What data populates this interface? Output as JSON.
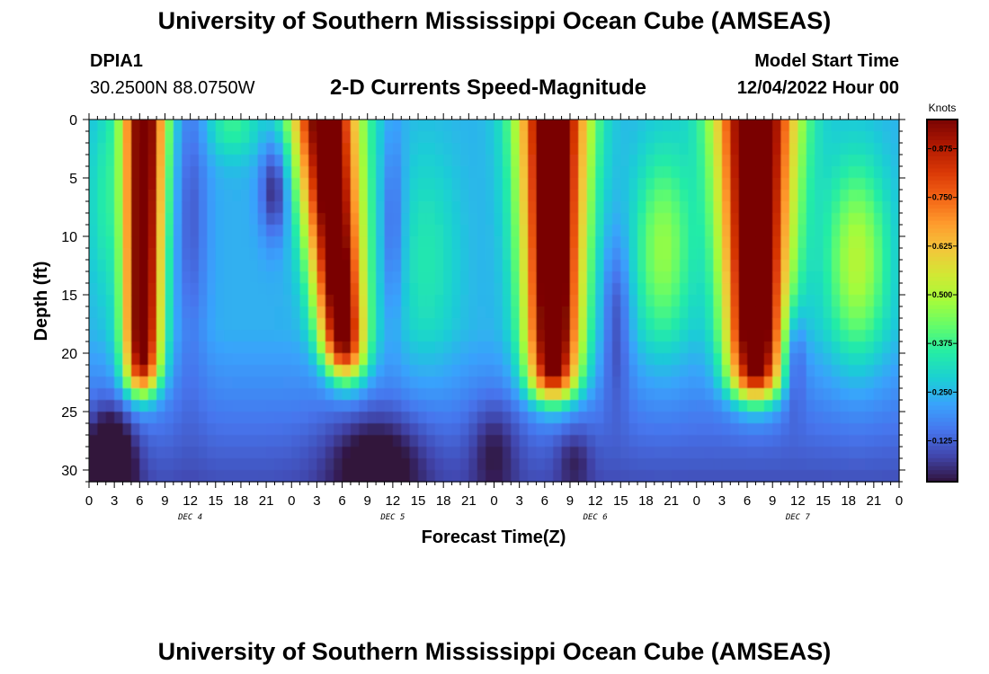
{
  "header": {
    "title": "University of Southern Mississippi Ocean Cube (AMSEAS)",
    "station_id": "DPIA1",
    "station_coords": "30.2500N  88.0750W",
    "subtitle": "2-D Currents Speed-Magnitude",
    "model_start_label": "Model Start Time",
    "model_start_value": "12/04/2022 Hour 00"
  },
  "footer": {
    "title": "University of Southern Mississippi Ocean Cube (AMSEAS)"
  },
  "chart_data": {
    "type": "heatmap",
    "xlabel": "Forecast Time(Z)",
    "ylabel": "Depth (ft)",
    "x_unit": "hours from model start",
    "xlim": [
      0,
      96
    ],
    "ylim": [
      0,
      31
    ],
    "x_tick_values": [
      0,
      3,
      6,
      9,
      12,
      15,
      18,
      21,
      24,
      27,
      30,
      33,
      36,
      39,
      42,
      45,
      48,
      51,
      54,
      57,
      60,
      63,
      66,
      69,
      72,
      75,
      78,
      81,
      84,
      87,
      90,
      93,
      96
    ],
    "x_tick_labels": [
      "0",
      "3",
      "6",
      "9",
      "12",
      "15",
      "18",
      "21",
      "0",
      "3",
      "6",
      "9",
      "12",
      "15",
      "18",
      "21",
      "0",
      "3",
      "6",
      "9",
      "12",
      "15",
      "18",
      "21",
      "0",
      "3",
      "6",
      "9",
      "12",
      "15",
      "18",
      "21",
      "0"
    ],
    "day_labels": [
      {
        "label": "DEC 4",
        "hour": 12
      },
      {
        "label": "DEC 5",
        "hour": 36
      },
      {
        "label": "DEC 6",
        "hour": 60
      },
      {
        "label": "DEC 7",
        "hour": 84
      }
    ],
    "y_tick_values": [
      0,
      5,
      10,
      15,
      20,
      25,
      30
    ],
    "y_tick_labels": [
      "0",
      "5",
      "10",
      "15",
      "20",
      "25",
      "30"
    ],
    "colorbar": {
      "unit": "Knots",
      "range": [
        0.02,
        0.95
      ],
      "tick_values": [
        0.125,
        0.25,
        0.375,
        0.5,
        0.625,
        0.75,
        0.875
      ],
      "tick_labels": [
        "0.125",
        "0.250",
        "0.375",
        "0.500",
        "0.625",
        "0.750",
        "0.875"
      ],
      "colormap": [
        "#30123b",
        "#4145ab",
        "#4675ed",
        "#39a2fc",
        "#1bcfd4",
        "#24eca6",
        "#61fc6c",
        "#a4fc3b",
        "#d1e834",
        "#f3c63a",
        "#fe9b2d",
        "#f36315",
        "#d93806",
        "#b11901",
        "#7a0403"
      ]
    },
    "features": [
      {
        "hour": 6.5,
        "speed": 0.92,
        "bottom_depth_ft": 24,
        "width_hours": 3.2,
        "description": "strong current core"
      },
      {
        "hour": 30,
        "speed": 0.92,
        "bottom_depth_ft": 22,
        "width_hours": 4,
        "description": "strong current core"
      },
      {
        "hour": 55,
        "speed": 0.95,
        "bottom_depth_ft": 24,
        "width_hours": 4.5,
        "description": "strong current core"
      },
      {
        "hour": 79,
        "speed": 0.96,
        "bottom_depth_ft": 24,
        "width_hours": 4.5,
        "description": "strong current core"
      },
      {
        "hour": 68,
        "speed": 0.45,
        "center_depth_ft": 11,
        "description": "secondary maximum"
      },
      {
        "hour": 91,
        "speed": 0.47,
        "center_depth_ft": 12,
        "description": "secondary maximum"
      },
      {
        "hour": 22,
        "speed": 0.05,
        "center_depth_ft": 6,
        "description": "low speed minimum"
      },
      {
        "hour": 2.5,
        "speed": 0.02,
        "center_depth_ft": 29,
        "description": "low speed minimum"
      }
    ]
  }
}
